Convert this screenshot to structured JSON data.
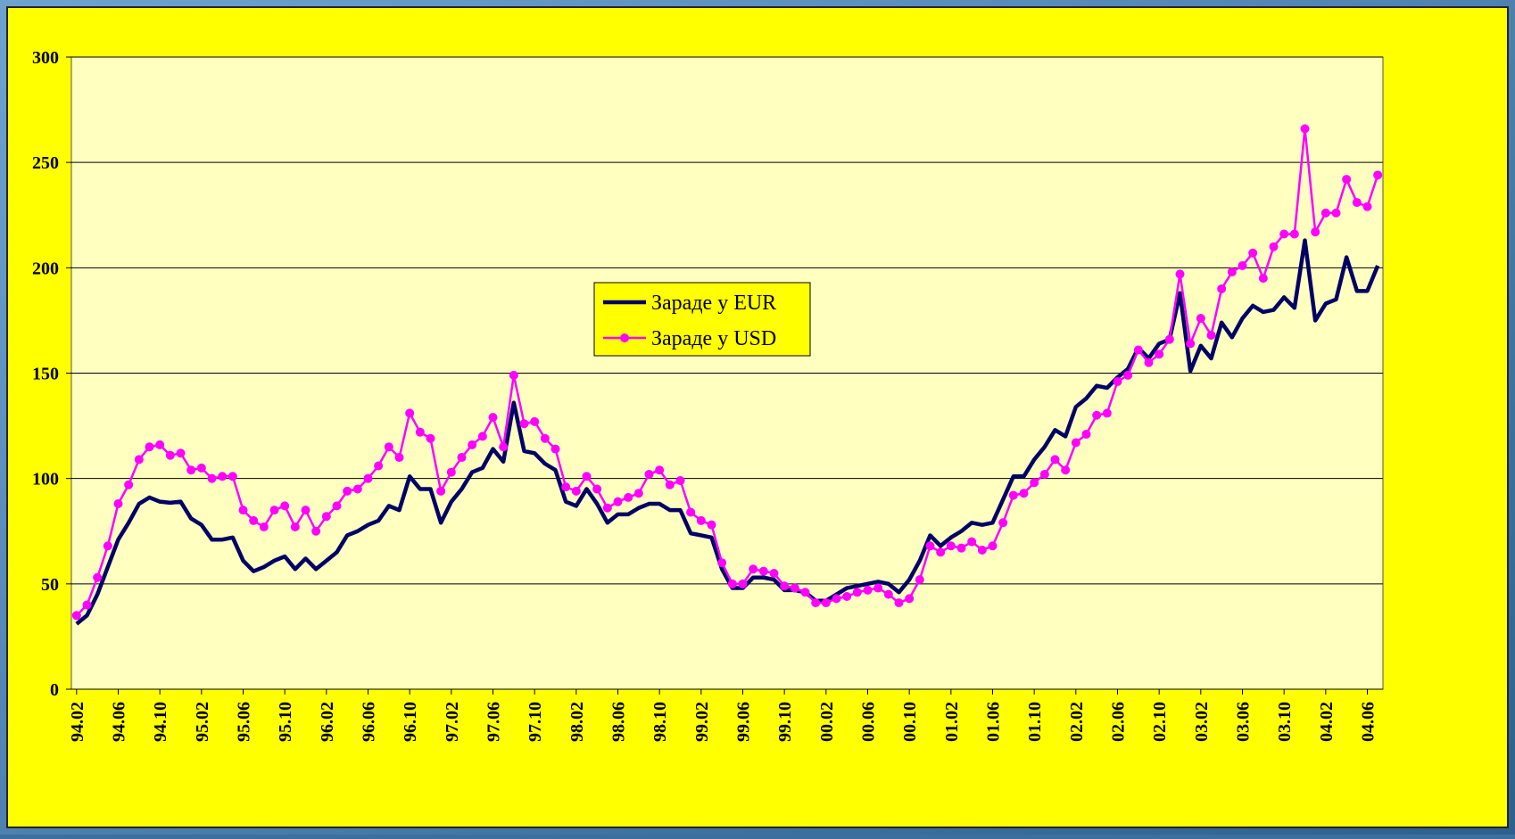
{
  "chart_data": {
    "type": "line",
    "categories": [
      "94.02",
      null,
      null,
      null,
      "94.06",
      null,
      null,
      null,
      "94.10",
      null,
      null,
      null,
      "95.02",
      null,
      null,
      null,
      "95.06",
      null,
      null,
      null,
      "95.10",
      null,
      null,
      null,
      "96.02",
      null,
      null,
      null,
      "96.06",
      null,
      null,
      null,
      "96.10",
      null,
      null,
      null,
      "97.02",
      null,
      null,
      null,
      "97.06",
      null,
      null,
      null,
      "97.10",
      null,
      null,
      null,
      "98.02",
      null,
      null,
      null,
      "98.06",
      null,
      null,
      null,
      "98.10",
      null,
      null,
      null,
      "99.02",
      null,
      null,
      null,
      "99.06",
      null,
      null,
      null,
      "99.10",
      null,
      null,
      null,
      "00.02",
      null,
      null,
      null,
      "00.06",
      null,
      null,
      null,
      "00.10",
      null,
      null,
      null,
      "01.02",
      null,
      null,
      null,
      "01.06",
      null,
      null,
      null,
      "01.10",
      null,
      null,
      null,
      "02.02",
      null,
      null,
      null,
      "02.06",
      null,
      null,
      null,
      "02.10",
      null,
      null,
      null,
      "03.02",
      null,
      null,
      null,
      "03.06",
      null,
      null,
      null,
      "03.10",
      null,
      null,
      null,
      "04.02",
      null,
      null,
      null,
      "04.06",
      null
    ],
    "series": [
      {
        "name": "Зараде у EUR",
        "color": "#000066",
        "marker": false,
        "values": [
          31,
          35,
          45,
          58,
          71,
          79,
          88,
          91,
          89,
          88.5,
          89,
          81,
          78,
          71,
          71,
          72,
          61,
          56,
          58,
          61,
          63,
          57,
          62,
          57,
          61,
          65,
          73,
          75,
          78,
          80,
          87,
          85,
          101,
          95,
          95,
          79,
          89,
          95,
          103,
          105,
          114,
          108,
          136,
          113,
          112,
          107,
          104,
          89,
          87,
          95,
          88,
          79,
          83,
          83,
          86,
          88,
          88,
          85,
          85,
          74,
          73,
          72,
          57,
          48,
          48,
          53,
          53,
          52,
          47,
          47,
          46,
          42,
          42,
          45,
          48,
          49,
          50,
          51,
          50,
          46,
          52,
          61,
          73,
          68,
          72,
          75,
          79,
          78,
          79,
          90,
          101,
          101,
          109,
          115,
          123,
          120,
          134,
          138,
          144,
          143,
          148,
          152,
          162,
          157,
          164,
          166,
          188,
          151,
          163,
          157,
          174,
          167,
          176,
          182,
          179,
          180,
          186,
          181,
          213,
          175,
          183,
          185,
          205,
          189,
          189,
          201
        ]
      },
      {
        "name": "Зараде у USD",
        "color": "#ff00ff",
        "marker": true,
        "values": [
          35,
          40,
          53,
          68,
          88,
          97,
          109,
          115,
          116,
          111,
          112,
          104,
          105,
          100,
          101,
          101,
          85,
          80,
          77,
          85,
          87,
          77,
          85,
          75,
          82,
          87,
          94,
          95,
          100,
          106,
          115,
          110,
          131,
          122,
          119,
          94,
          103,
          110,
          116,
          120,
          129,
          115,
          149,
          126,
          127,
          119,
          114,
          96,
          94,
          101,
          95,
          86,
          89,
          91,
          93,
          102,
          104,
          97,
          99,
          84,
          80,
          78,
          60,
          50,
          50,
          57,
          56,
          55,
          49,
          48,
          46,
          41,
          41,
          43,
          44,
          46,
          47,
          48,
          45,
          41,
          43,
          52,
          68,
          65,
          68,
          67,
          70,
          66,
          68,
          79,
          92,
          93,
          98,
          102,
          109,
          104,
          117,
          121,
          130,
          131,
          146,
          149,
          161,
          155,
          159,
          166,
          197,
          164,
          176,
          168,
          190,
          198,
          201,
          207,
          195,
          210,
          216,
          216,
          266,
          217,
          226,
          226,
          242,
          231,
          229,
          244
        ]
      }
    ],
    "ylim": [
      0,
      300
    ],
    "yticks": [
      0,
      50,
      100,
      150,
      200,
      250,
      300
    ],
    "grid": true,
    "legend_position": "center"
  }
}
